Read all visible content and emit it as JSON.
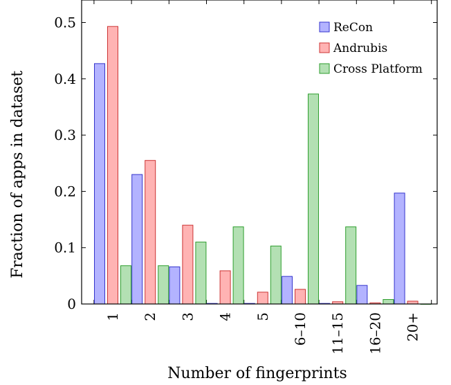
{
  "chart_data": {
    "type": "bar",
    "xlabel": "Number of fingerprints",
    "ylabel": "Fraction of apps in dataset",
    "categories": [
      "1",
      "2",
      "3",
      "4",
      "5",
      "6–10",
      "11–15",
      "16–20",
      "20+"
    ],
    "ylim": [
      0,
      0.54
    ],
    "yticks": [
      0,
      0.1,
      0.2,
      0.3,
      0.4,
      0.5
    ],
    "ytick_labels": [
      "0",
      "0.1",
      "0.2",
      "0.3",
      "0.4",
      "0.5"
    ],
    "legend_position": "top-right",
    "grid": false,
    "series": [
      {
        "name": "ReCon",
        "color": "#b3b3ff",
        "stroke": "#3333cc",
        "values": [
          0.427,
          0.23,
          0.066,
          0.001,
          0.001,
          0.049,
          0.001,
          0.033,
          0.197
        ]
      },
      {
        "name": "Andrubis",
        "color": "#ffb3b3",
        "stroke": "#cc3333",
        "values": [
          0.493,
          0.255,
          0.14,
          0.059,
          0.021,
          0.026,
          0.004,
          0.002,
          0.005
        ]
      },
      {
        "name": "Cross Platform",
        "color": "#b3e0b3",
        "stroke": "#2e9e2e",
        "values": [
          0.068,
          0.068,
          0.11,
          0.137,
          0.103,
          0.373,
          0.137,
          0.008,
          0.0
        ]
      }
    ]
  }
}
